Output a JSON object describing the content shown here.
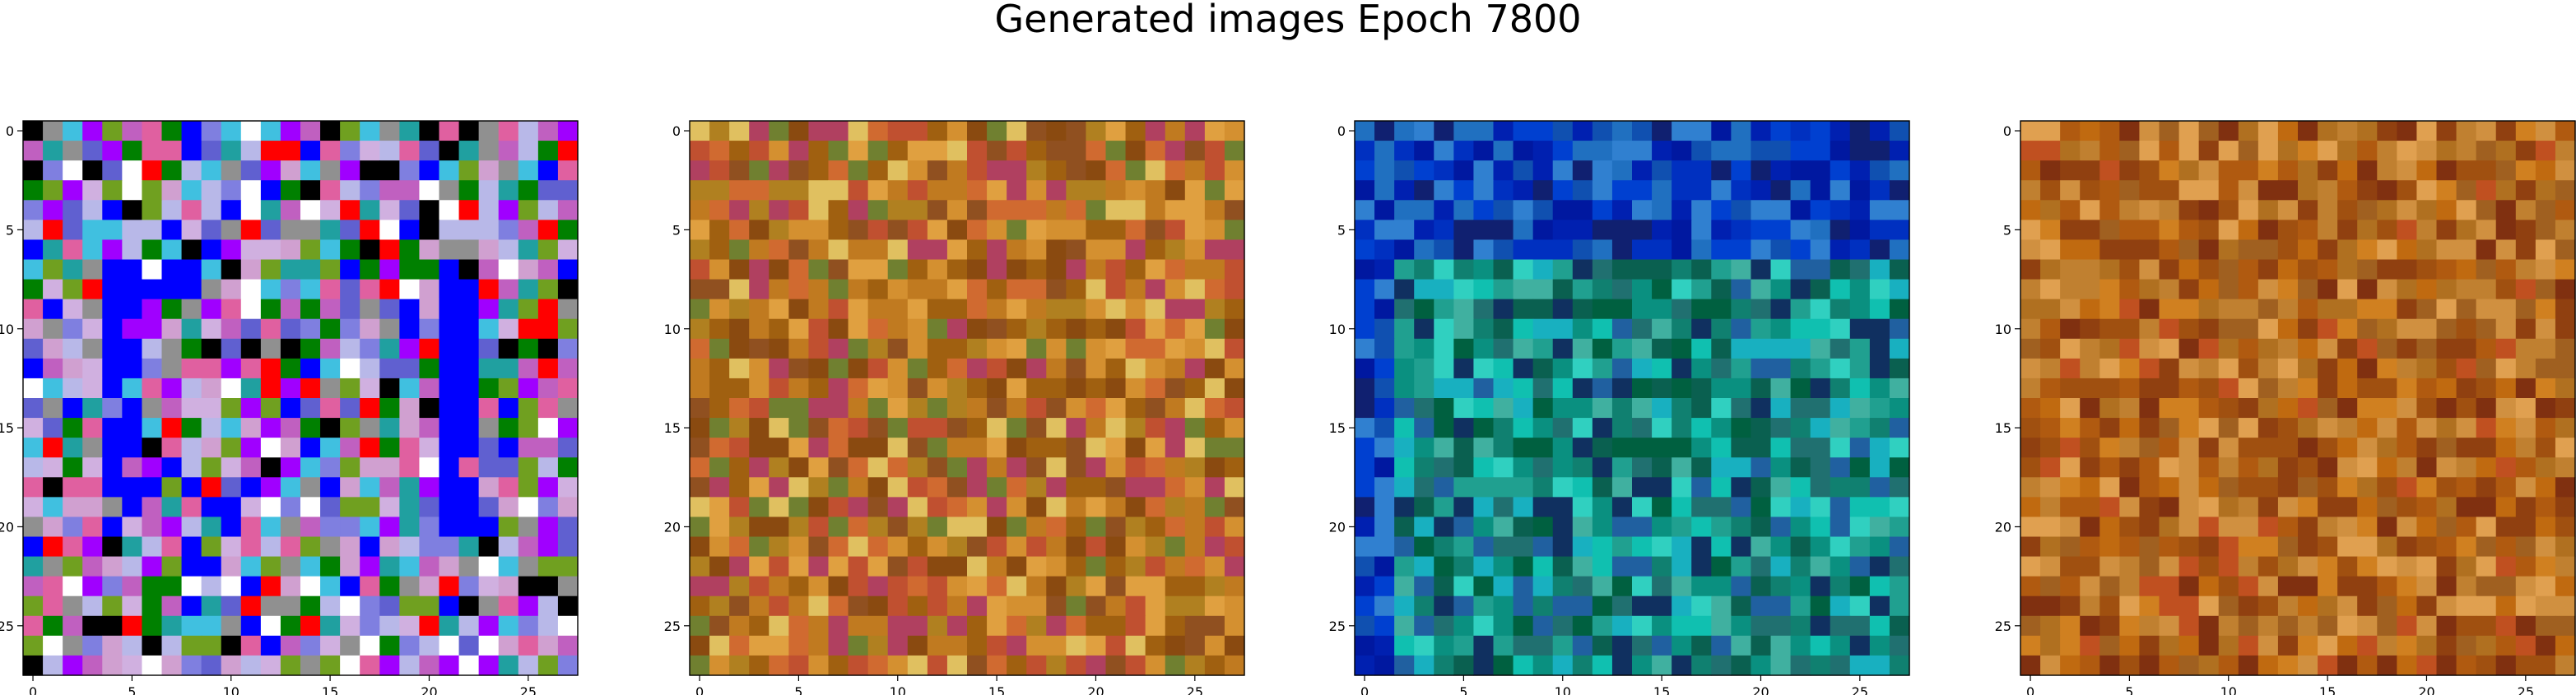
{
  "figure": {
    "title": "Generated images Epoch 7800"
  },
  "chart_data": [
    {
      "type": "heatmap",
      "title": "",
      "xlabel": "",
      "ylabel": "",
      "xticks": [
        0,
        5,
        10,
        15,
        20,
        25
      ],
      "yticks": [
        0,
        5,
        10,
        15,
        20,
        25
      ],
      "xlim": [
        -0.5,
        27.5
      ],
      "ylim": [
        27.5,
        -0.5
      ],
      "grid_size": 28,
      "palette": [
        "#7f7fe0",
        "#b8b8e8",
        "#6060d0",
        "#0000ff",
        "#d0b0e0",
        "#c060c0",
        "#e060a0",
        "#20a0a0",
        "#40c0e0",
        "#ffffff",
        "#000000",
        "#a000ff",
        "#ff0000",
        "#008000",
        "#70a020",
        "#d0a0d0",
        "#909090"
      ],
      "accent_region": {
        "rows": [
          7,
          20
        ],
        "cols": [
          4,
          22
        ],
        "color": "#0000ff"
      }
    },
    {
      "type": "heatmap",
      "title": "",
      "xlabel": "",
      "ylabel": "",
      "xticks": [
        0,
        5,
        10,
        15,
        20,
        25
      ],
      "yticks": [
        0,
        5,
        10,
        15,
        20,
        25
      ],
      "xlim": [
        -0.5,
        27.5
      ],
      "ylim": [
        27.5,
        -0.5
      ],
      "grid_size": 28,
      "palette": [
        "#c07a20",
        "#d49030",
        "#a06010",
        "#b08020",
        "#e0a040",
        "#8a4a10",
        "#c05030",
        "#708030",
        "#e0c060",
        "#b04060",
        "#905020",
        "#d06a30"
      ]
    },
    {
      "type": "heatmap",
      "title": "",
      "xlabel": "",
      "ylabel": "",
      "xticks": [
        0,
        5,
        10,
        15,
        20,
        25
      ],
      "yticks": [
        0,
        5,
        10,
        15,
        20,
        25
      ],
      "xlim": [
        -0.5,
        27.5
      ],
      "ylim": [
        27.5,
        -0.5
      ],
      "grid_size": 28,
      "palette": [
        "#108070",
        "#20a090",
        "#10c0b0",
        "#30d0c0",
        "#0a6050",
        "#207070",
        "#40b0a0",
        "#0a9080",
        "#103060",
        "#2060a0",
        "#18b0c0",
        "#006040"
      ],
      "top_palette": [
        "#0018a0",
        "#0030c0",
        "#0040d0",
        "#1050b0",
        "#2070c0",
        "#0020b0",
        "#3080d0",
        "#102070"
      ]
    },
    {
      "type": "heatmap",
      "title": "",
      "xlabel": "",
      "ylabel": "",
      "xticks": [
        0,
        5,
        10,
        15,
        20,
        25
      ],
      "yticks": [
        0,
        5,
        10,
        15,
        20,
        25
      ],
      "xlim": [
        -0.5,
        27.5
      ],
      "ylim": [
        27.5,
        -0.5
      ],
      "grid_size": 28,
      "palette": [
        "#c06a10",
        "#b05a10",
        "#d08020",
        "#a05010",
        "#c08030",
        "#904010",
        "#d09040",
        "#b07020",
        "#803010",
        "#e0a050",
        "#a06020",
        "#c05020"
      ]
    }
  ]
}
